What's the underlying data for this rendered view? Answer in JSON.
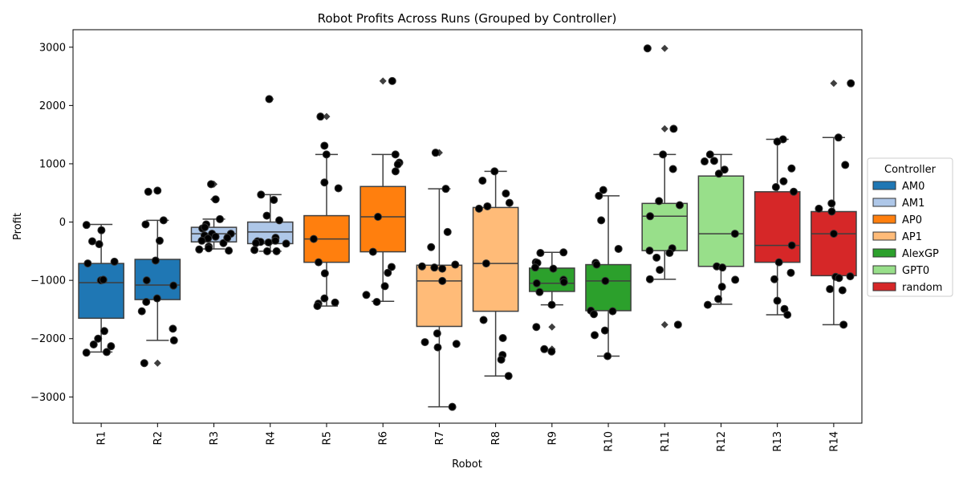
{
  "chart_data": {
    "type": "box",
    "title": "Robot Profits Across Runs (Grouped by Controller)",
    "xlabel": "Robot",
    "ylabel": "Profit",
    "ylim": [
      -3450,
      3300
    ],
    "yticks": [
      -3000,
      -2000,
      -1000,
      0,
      1000,
      2000,
      3000
    ],
    "grid": false,
    "legend": {
      "title": "Controller",
      "placement": "outside-right",
      "entries": [
        {
          "name": "AM0",
          "color": "#1f77b4"
        },
        {
          "name": "AM1",
          "color": "#aec7e8"
        },
        {
          "name": "AP0",
          "color": "#ff7f0e"
        },
        {
          "name": "AP1",
          "color": "#ffbb78"
        },
        {
          "name": "AlexGP",
          "color": "#2ca02c"
        },
        {
          "name": "GPT0",
          "color": "#98df8a"
        },
        {
          "name": "random",
          "color": "#d62728"
        }
      ]
    },
    "categories": [
      "R1",
      "R2",
      "R3",
      "R4",
      "R5",
      "R6",
      "R7",
      "R8",
      "R9",
      "R10",
      "R11",
      "R12",
      "R13",
      "R14"
    ],
    "boxes": [
      {
        "robot": "R1",
        "controller": "AM0",
        "whisker_low": -2230,
        "q1": -1650,
        "median": -1040,
        "q3": -710,
        "whisker_high": -40
      },
      {
        "robot": "R2",
        "controller": "AM0",
        "whisker_low": -2030,
        "q1": -1330,
        "median": -1080,
        "q3": -640,
        "whisker_high": 30
      },
      {
        "robot": "R3",
        "controller": "AM1",
        "whisker_low": -460,
        "q1": -340,
        "median": -200,
        "q3": -90,
        "whisker_high": 50
      },
      {
        "robot": "R4",
        "controller": "AM1",
        "whisker_low": -500,
        "q1": -370,
        "median": -170,
        "q3": 0,
        "whisker_high": 470
      },
      {
        "robot": "R5",
        "controller": "AP0",
        "whisker_low": -1440,
        "q1": -690,
        "median": -290,
        "q3": 110,
        "whisker_high": 1160
      },
      {
        "robot": "R6",
        "controller": "AP0",
        "whisker_low": -1360,
        "q1": -510,
        "median": 90,
        "q3": 610,
        "whisker_high": 1160
      },
      {
        "robot": "R7",
        "controller": "AP1",
        "whisker_low": -3170,
        "q1": -1790,
        "median": -1010,
        "q3": -740,
        "whisker_high": 570
      },
      {
        "robot": "R8",
        "controller": "AP1",
        "whisker_low": -2640,
        "q1": -1530,
        "median": -710,
        "q3": 250,
        "whisker_high": 870
      },
      {
        "robot": "R9",
        "controller": "AlexGP",
        "whisker_low": -1420,
        "q1": -1190,
        "median": -1050,
        "q3": -790,
        "whisker_high": -520
      },
      {
        "robot": "R10",
        "controller": "AlexGP",
        "whisker_low": -2300,
        "q1": -1520,
        "median": -1010,
        "q3": -730,
        "whisker_high": 450
      },
      {
        "robot": "R11",
        "controller": "GPT0",
        "whisker_low": -980,
        "q1": -490,
        "median": 100,
        "q3": 320,
        "whisker_high": 1160
      },
      {
        "robot": "R12",
        "controller": "GPT0",
        "whisker_low": -1410,
        "q1": -760,
        "median": -200,
        "q3": 790,
        "whisker_high": 1160
      },
      {
        "robot": "R13",
        "controller": "random",
        "whisker_low": -1590,
        "q1": -690,
        "median": -400,
        "q3": 520,
        "whisker_high": 1420
      },
      {
        "robot": "R14",
        "controller": "random",
        "whisker_low": -1760,
        "q1": -920,
        "median": -200,
        "q3": 180,
        "whisker_high": 1450
      }
    ],
    "outliers": [
      {
        "robot": "R2",
        "values": [
          -2420
        ]
      },
      {
        "robot": "R3",
        "values": [
          650,
          390
        ]
      },
      {
        "robot": "R4",
        "values": [
          2110
        ]
      },
      {
        "robot": "R5",
        "values": [
          1810
        ]
      },
      {
        "robot": "R6",
        "values": [
          2420
        ]
      },
      {
        "robot": "R7",
        "values": [
          1190
        ]
      },
      {
        "robot": "R9",
        "values": [
          -1800,
          -2180,
          -2220
        ]
      },
      {
        "robot": "R11",
        "values": [
          2980,
          1600,
          -1760
        ]
      },
      {
        "robot": "R14",
        "values": [
          2380
        ]
      }
    ],
    "points": [
      {
        "robot": "R1",
        "values": [
          -1000,
          -990,
          -710,
          -330,
          -380,
          -140,
          -50,
          -680,
          -1870,
          -2000,
          -2100,
          -2130,
          -2230,
          -2240
        ]
      },
      {
        "robot": "R2",
        "values": [
          540,
          520,
          30,
          -40,
          -320,
          -1310,
          -1370,
          -1530,
          -1830,
          -2030,
          -2420,
          -660,
          -1090,
          -1000
        ]
      },
      {
        "robot": "R3",
        "values": [
          650,
          390,
          50,
          -40,
          -110,
          -200,
          -200,
          -230,
          -250,
          -280,
          -320,
          -360,
          -420,
          -450,
          -470,
          -490,
          -90,
          -270
        ]
      },
      {
        "robot": "R4",
        "values": [
          2110,
          470,
          380,
          110,
          30,
          -270,
          -330,
          -340,
          -350,
          -360,
          -480,
          -500,
          -500,
          -320,
          -370
        ]
      },
      {
        "robot": "R5",
        "values": [
          1810,
          1310,
          1160,
          680,
          580,
          -880,
          -1310,
          -1400,
          -1440,
          -1380,
          -290,
          -690
        ]
      },
      {
        "robot": "R6",
        "values": [
          2420,
          1160,
          1020,
          990,
          870,
          -770,
          -870,
          -1100,
          -1250,
          -1370,
          90,
          -510
        ]
      },
      {
        "robot": "R7",
        "values": [
          1190,
          570,
          -170,
          -430,
          -730,
          -760,
          -780,
          -800,
          -1910,
          -2060,
          -2090,
          -2150,
          -3170,
          -1010
        ]
      },
      {
        "robot": "R8",
        "values": [
          870,
          710,
          490,
          330,
          270,
          230,
          -1680,
          -1990,
          -2280,
          -2360,
          -2640,
          -710
        ]
      },
      {
        "robot": "R9",
        "values": [
          -520,
          -530,
          -690,
          -700,
          -780,
          -800,
          -990,
          -1030,
          -1200,
          -1420,
          -1800,
          -2180,
          -2220,
          -1050
        ]
      },
      {
        "robot": "R10",
        "values": [
          550,
          450,
          30,
          -460,
          -700,
          -730,
          -1520,
          -1530,
          -1580,
          -1860,
          -1940,
          -2300,
          -1010
        ]
      },
      {
        "robot": "R11",
        "values": [
          2980,
          1600,
          1160,
          910,
          360,
          290,
          -450,
          -530,
          -610,
          -820,
          -980,
          -1760,
          100,
          -490
        ]
      },
      {
        "robot": "R12",
        "values": [
          1160,
          1050,
          1040,
          900,
          830,
          -760,
          -780,
          -990,
          -1110,
          -1320,
          -1420,
          -200
        ]
      },
      {
        "robot": "R13",
        "values": [
          1420,
          1380,
          920,
          700,
          600,
          520,
          -870,
          -980,
          -1350,
          -1490,
          -1590,
          -400,
          -690
        ]
      },
      {
        "robot": "R14",
        "values": [
          2380,
          1450,
          980,
          320,
          230,
          -930,
          -940,
          -960,
          -1150,
          -1170,
          -1760,
          -200,
          180
        ]
      }
    ]
  }
}
